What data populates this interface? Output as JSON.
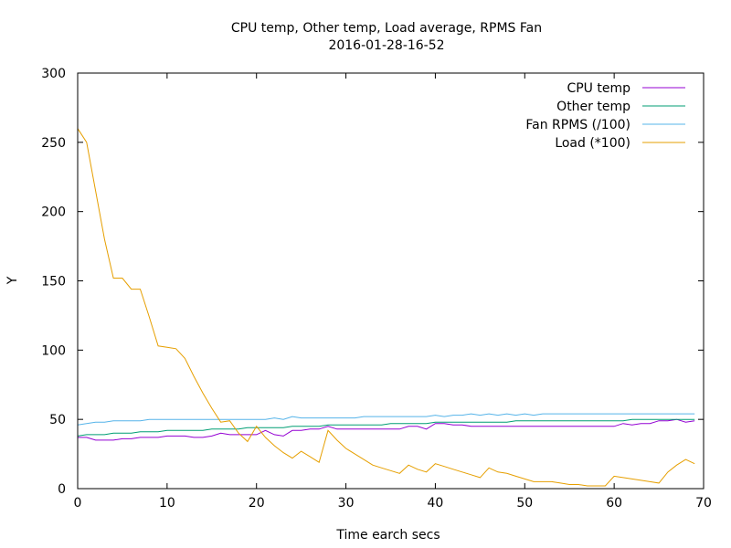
{
  "chart_data": {
    "type": "line",
    "title": "CPU temp, Other temp, Load average, RPMS Fan",
    "subtitle": "2016-01-28-16-52",
    "xlabel": "Time earch  secs",
    "ylabel": "Y",
    "xlim": [
      0,
      70
    ],
    "ylim": [
      0,
      300
    ],
    "xticks": [
      0,
      10,
      20,
      30,
      40,
      50,
      60,
      70
    ],
    "yticks": [
      0,
      50,
      100,
      150,
      200,
      250,
      300
    ],
    "grid": false,
    "legend_position": "top-right",
    "x": [
      0,
      1,
      2,
      3,
      4,
      5,
      6,
      7,
      8,
      9,
      10,
      11,
      12,
      13,
      14,
      15,
      16,
      17,
      18,
      19,
      20,
      21,
      22,
      23,
      24,
      25,
      26,
      27,
      28,
      29,
      30,
      31,
      32,
      33,
      34,
      35,
      36,
      37,
      38,
      39,
      40,
      41,
      42,
      43,
      44,
      45,
      46,
      47,
      48,
      49,
      50,
      51,
      52,
      53,
      54,
      55,
      56,
      57,
      58,
      59,
      60,
      61,
      62,
      63,
      64,
      65,
      66,
      67,
      68,
      69
    ],
    "series": [
      {
        "name": "CPU temp",
        "color": "#9400d3",
        "values": [
          37,
          37,
          35,
          35,
          35,
          36,
          36,
          37,
          37,
          37,
          38,
          38,
          38,
          37,
          37,
          38,
          40,
          39,
          39,
          39,
          39,
          42,
          39,
          38,
          42,
          42,
          43,
          43,
          45,
          43,
          43,
          43,
          43,
          43,
          43,
          43,
          43,
          45,
          45,
          43,
          47,
          47,
          46,
          46,
          45,
          45,
          45,
          45,
          45,
          45,
          45,
          45,
          45,
          45,
          45,
          45,
          45,
          45,
          45,
          45,
          45,
          47,
          46,
          47,
          47,
          49,
          49,
          50,
          48,
          49
        ]
      },
      {
        "name": "Other temp",
        "color": "#009e73",
        "values": [
          38,
          39,
          39,
          39,
          40,
          40,
          40,
          41,
          41,
          41,
          42,
          42,
          42,
          42,
          42,
          43,
          43,
          43,
          43,
          44,
          44,
          44,
          44,
          44,
          45,
          45,
          45,
          45,
          46,
          46,
          46,
          46,
          46,
          46,
          46,
          47,
          47,
          47,
          47,
          47,
          48,
          48,
          48,
          48,
          48,
          48,
          48,
          48,
          48,
          49,
          49,
          49,
          49,
          49,
          49,
          49,
          49,
          49,
          49,
          49,
          49,
          49,
          50,
          50,
          50,
          50,
          50,
          50,
          50,
          50
        ]
      },
      {
        "name": "Fan RPMS (/100)",
        "color": "#56b4e9",
        "values": [
          46,
          47,
          48,
          48,
          49,
          49,
          49,
          49,
          50,
          50,
          50,
          50,
          50,
          50,
          50,
          50,
          50,
          50,
          50,
          50,
          50,
          50,
          51,
          50,
          52,
          51,
          51,
          51,
          51,
          51,
          51,
          51,
          52,
          52,
          52,
          52,
          52,
          52,
          52,
          52,
          53,
          52,
          53,
          53,
          54,
          53,
          54,
          53,
          54,
          53,
          54,
          53,
          54,
          54,
          54,
          54,
          54,
          54,
          54,
          54,
          54,
          54,
          54,
          54,
          54,
          54,
          54,
          54,
          54,
          54
        ]
      },
      {
        "name": "Load (*100)",
        "color": "#e69f00",
        "values": [
          260,
          250,
          215,
          180,
          152,
          152,
          144,
          144,
          124,
          103,
          102,
          101,
          94,
          81,
          69,
          58,
          48,
          49,
          40,
          34,
          45,
          37,
          31,
          26,
          22,
          27,
          23,
          19,
          42,
          35,
          29,
          25,
          21,
          17,
          15,
          13,
          11,
          17,
          14,
          12,
          18,
          16,
          14,
          12,
          10,
          8,
          15,
          12,
          11,
          9,
          7,
          5,
          5,
          5,
          4,
          3,
          3,
          2,
          2,
          2,
          9,
          8,
          7,
          6,
          5,
          4,
          12,
          17,
          21,
          18
        ]
      }
    ]
  }
}
